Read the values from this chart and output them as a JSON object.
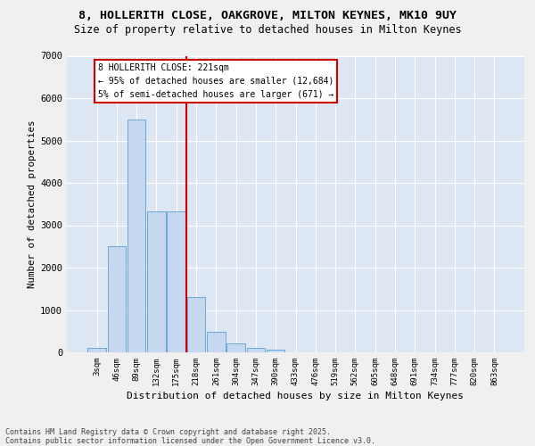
{
  "title_line1": "8, HOLLERITH CLOSE, OAKGROVE, MILTON KEYNES, MK10 9UY",
  "title_line2": "Size of property relative to detached houses in Milton Keynes",
  "xlabel": "Distribution of detached houses by size in Milton Keynes",
  "ylabel": "Number of detached properties",
  "categories": [
    "3sqm",
    "46sqm",
    "89sqm",
    "132sqm",
    "175sqm",
    "218sqm",
    "261sqm",
    "304sqm",
    "347sqm",
    "390sqm",
    "433sqm",
    "476sqm",
    "519sqm",
    "562sqm",
    "605sqm",
    "648sqm",
    "691sqm",
    "734sqm",
    "777sqm",
    "820sqm",
    "863sqm"
  ],
  "values": [
    100,
    2500,
    5500,
    3330,
    3330,
    1310,
    480,
    220,
    100,
    60,
    0,
    0,
    0,
    0,
    0,
    0,
    0,
    0,
    0,
    0,
    0
  ],
  "bar_color": "#c5d8ef",
  "bar_edge_color": "#6aaad4",
  "annotation_line1": "8 HOLLERITH CLOSE: 221sqm",
  "annotation_line2": "← 95% of detached houses are smaller (12,684)",
  "annotation_line3": "5% of semi-detached houses are larger (671) →",
  "vline_color": "#cc0000",
  "vline_x_index": 4.5,
  "annotation_box_edgecolor": "#cc0000",
  "ylim": [
    0,
    7000
  ],
  "yticks": [
    0,
    1000,
    2000,
    3000,
    4000,
    5000,
    6000,
    7000
  ],
  "bg_color": "#dde6f3",
  "fig_bg_color": "#f0f0f0",
  "footer_line1": "Contains HM Land Registry data © Crown copyright and database right 2025.",
  "footer_line2": "Contains public sector information licensed under the Open Government Licence v3.0."
}
